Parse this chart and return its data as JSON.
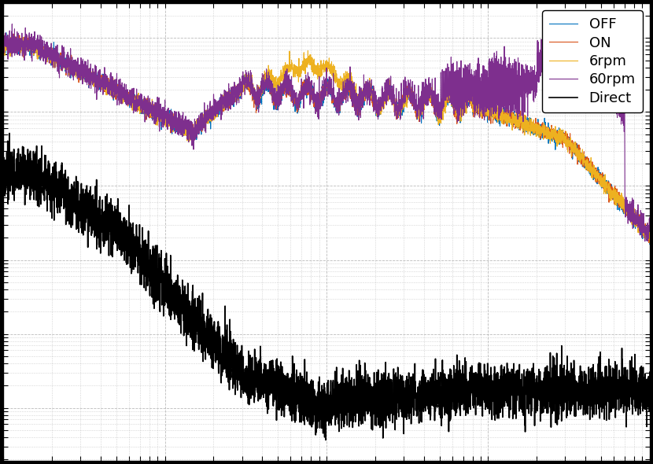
{
  "legend_labels": [
    "OFF",
    "ON",
    "6rpm",
    "60rpm",
    "Direct"
  ],
  "line_colors": [
    "#0072bd",
    "#d95319",
    "#edb120",
    "#7e2f8e",
    "#000000"
  ],
  "line_widths": [
    0.8,
    0.8,
    0.8,
    0.8,
    1.2
  ],
  "background_color": "#ffffff",
  "outer_color": "#000000",
  "grid_color": "#aaaaaa",
  "figsize": [
    8.3,
    5.9
  ],
  "dpi": 100,
  "freq_min": 0.1,
  "freq_max": 1000,
  "N_points": 5000
}
